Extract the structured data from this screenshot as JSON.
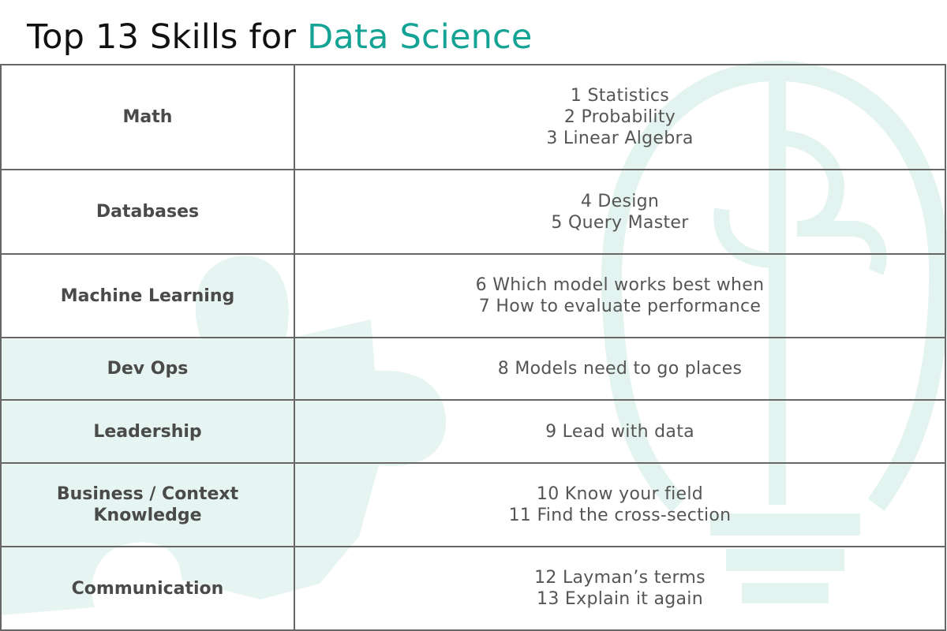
{
  "title": {
    "prefix": "Top 13 Skills for",
    "accent": "Data Science"
  },
  "colors": {
    "accent": "#14a394",
    "text": "#4f4f4f",
    "border": "#666666",
    "art": "#e6f4f2"
  },
  "rows": [
    {
      "category": [
        "Math"
      ],
      "items": [
        "1 Statistics",
        "2 Probability",
        "3 Linear Algebra"
      ]
    },
    {
      "category": [
        "Databases"
      ],
      "items": [
        "4 Design",
        "5 Query Master"
      ]
    },
    {
      "category": [
        "Machine Learning"
      ],
      "items": [
        "6 Which model works best when",
        "7 How to evaluate performance"
      ]
    },
    {
      "category": [
        "Dev Ops"
      ],
      "items": [
        "8 Models need to go places"
      ]
    },
    {
      "category": [
        "Leadership"
      ],
      "items": [
        "9 Lead with data"
      ]
    },
    {
      "category": [
        "Business / Context",
        "Knowledge"
      ],
      "items": [
        "10 Know your field",
        "11 Find the cross-section"
      ]
    },
    {
      "category": [
        "Communication"
      ],
      "items": [
        "12 Layman’s terms",
        "13 Explain it again"
      ]
    }
  ]
}
